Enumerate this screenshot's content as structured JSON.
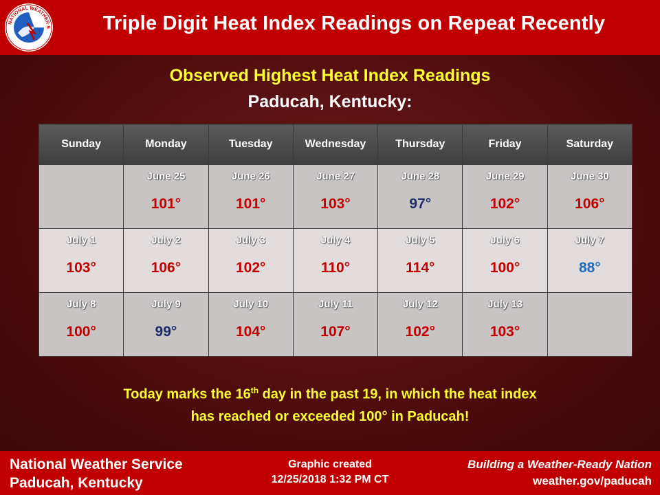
{
  "header": {
    "title": "Triple Digit Heat Index Readings on Repeat Recently",
    "logo_icon": "nws-logo-icon",
    "logo_text": "NATIONAL WEATHER SERVICE"
  },
  "subtitle": {
    "line1": "Observed Highest Heat Index Readings",
    "line2": "Paducah, Kentucky:"
  },
  "calendar": {
    "days": [
      "Sunday",
      "Monday",
      "Tuesday",
      "Wednesday",
      "Thursday",
      "Friday",
      "Saturday"
    ],
    "weeks": [
      [
        {
          "date": "",
          "temp": "",
          "color": ""
        },
        {
          "date": "June 25",
          "temp": "101°",
          "color": "red"
        },
        {
          "date": "June 26",
          "temp": "101°",
          "color": "red"
        },
        {
          "date": "June 27",
          "temp": "103°",
          "color": "red"
        },
        {
          "date": "June 28",
          "temp": "97°",
          "color": "navy"
        },
        {
          "date": "June 29",
          "temp": "102°",
          "color": "red"
        },
        {
          "date": "June 30",
          "temp": "106°",
          "color": "red"
        }
      ],
      [
        {
          "date": "July 1",
          "temp": "103°",
          "color": "red"
        },
        {
          "date": "July 2",
          "temp": "106°",
          "color": "red"
        },
        {
          "date": "July 3",
          "temp": "102°",
          "color": "red"
        },
        {
          "date": "July 4",
          "temp": "110°",
          "color": "red"
        },
        {
          "date": "July 5",
          "temp": "114°",
          "color": "red"
        },
        {
          "date": "July 6",
          "temp": "100°",
          "color": "red"
        },
        {
          "date": "July 7",
          "temp": "88°",
          "color": "blue"
        }
      ],
      [
        {
          "date": "July 8",
          "temp": "100°",
          "color": "red"
        },
        {
          "date": "July 9",
          "temp": "99°",
          "color": "navy"
        },
        {
          "date": "July 10",
          "temp": "104°",
          "color": "red"
        },
        {
          "date": "July 11",
          "temp": "107°",
          "color": "red"
        },
        {
          "date": "July 12",
          "temp": "102°",
          "color": "red"
        },
        {
          "date": "July 13",
          "temp": "103°",
          "color": "red"
        },
        {
          "date": "",
          "temp": "",
          "color": ""
        }
      ]
    ],
    "colors": {
      "red": "#c00000",
      "navy": "#1a2a6c",
      "blue": "#1f6fbf"
    }
  },
  "note": {
    "part1": "Today marks the 16",
    "sup": "th",
    "part2": " day in the past 19, in which the heat index",
    "line2": "has reached or exceeded 100° in Paducah!"
  },
  "footer": {
    "org_line1": "National Weather Service",
    "org_line2": "Paducah, Kentucky",
    "created_label": "Graphic created",
    "created_date": "12/25/2018 1:32 PM CT",
    "tagline": "Building a Weather-Ready Nation",
    "website": "weather.gov/paducah"
  }
}
